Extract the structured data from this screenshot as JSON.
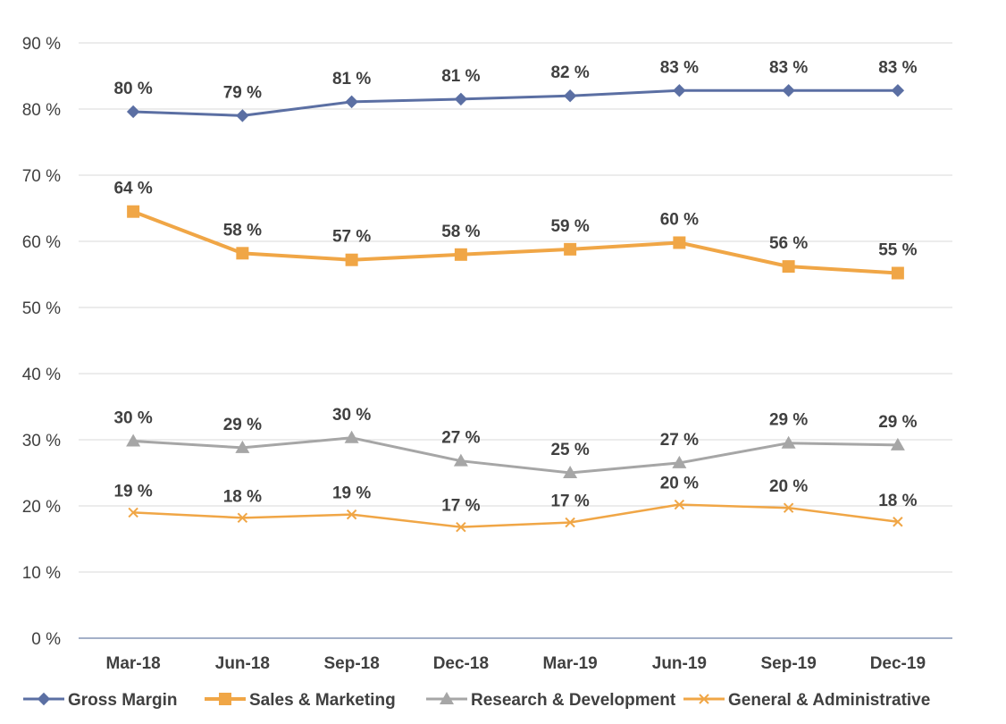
{
  "chart_data": {
    "type": "line",
    "categories": [
      "Mar-18",
      "Jun-18",
      "Sep-18",
      "Dec-18",
      "Mar-19",
      "Jun-19",
      "Sep-19",
      "Dec-19"
    ],
    "ylim": [
      0,
      90
    ],
    "yticks": [
      0,
      10,
      20,
      30,
      40,
      50,
      60,
      70,
      80,
      90
    ],
    "ytick_labels": [
      "0 %",
      "10 %",
      "20 %",
      "30 %",
      "40 %",
      "50 %",
      "60 %",
      "70 %",
      "80 %",
      "90 %"
    ],
    "grid": true,
    "legend_position": "bottom",
    "series": [
      {
        "name": "Gross Margin",
        "color": "#5B6FA3",
        "marker": "diamond",
        "values": [
          79.6,
          79.0,
          81.1,
          81.5,
          82.0,
          82.8,
          82.8,
          82.8
        ],
        "labels": [
          "80 %",
          "79 %",
          "81 %",
          "81 %",
          "82 %",
          "83 %",
          "83 %",
          "83 %"
        ]
      },
      {
        "name": "Sales & Marketing",
        "color": "#F0A646",
        "marker": "square",
        "values": [
          64.5,
          58.2,
          57.2,
          58.0,
          58.8,
          59.8,
          56.2,
          55.2
        ],
        "labels": [
          "64 %",
          "58 %",
          "57 %",
          "58 %",
          "59 %",
          "60 %",
          "56 %",
          "55 %"
        ]
      },
      {
        "name": "Research & Development",
        "color": "#A6A6A6",
        "marker": "triangle",
        "values": [
          29.8,
          28.8,
          30.3,
          26.8,
          25.0,
          26.5,
          29.5,
          29.2
        ],
        "labels": [
          "30 %",
          "29 %",
          "30 %",
          "27 %",
          "25 %",
          "27 %",
          "29 %",
          "29 %"
        ]
      },
      {
        "name": "General & Administrative",
        "color": "#F0A646",
        "marker": "x",
        "values": [
          19.0,
          18.2,
          18.7,
          16.8,
          17.5,
          20.2,
          19.7,
          17.6
        ],
        "labels": [
          "19 %",
          "18 %",
          "19 %",
          "17 %",
          "17 %",
          "20 %",
          "20 %",
          "18 %"
        ]
      }
    ]
  }
}
